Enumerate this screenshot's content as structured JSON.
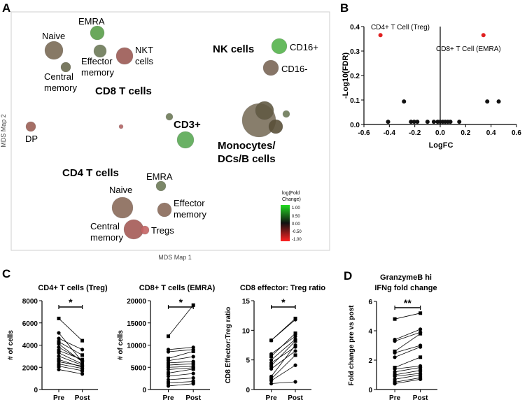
{
  "chart_data": [
    {
      "id": "A",
      "type": "scatter",
      "subtype": "bubble-mds",
      "panel_label": "A",
      "xlabel": "MDS Map 1",
      "ylabel": "MDS Map 2",
      "groups": [
        "CD8 T cells",
        "NK cells",
        "CD3+",
        "Monocytes/",
        "DCs/B cells",
        "CD4 T cells"
      ],
      "legend": {
        "title1": "log(Fold",
        "title2": "Change)",
        "ticks": [
          "1.00",
          "0.50",
          "0.00",
          "-0.50",
          "-1.00"
        ]
      },
      "bubbles": [
        {
          "label": "EMRA",
          "x": 139,
          "y": 47,
          "r": 10,
          "color": "#5a9e4a"
        },
        {
          "label": "Naive",
          "x": 77,
          "y": 72,
          "r": 13,
          "color": "#7a6a55"
        },
        {
          "label": "Effector memory",
          "x": 143,
          "y": 73,
          "r": 9,
          "color": "#6d7a58"
        },
        {
          "label": "NKT cells",
          "x": 178,
          "y": 80,
          "r": 12,
          "color": "#9b5a54"
        },
        {
          "label": "Central memory",
          "x": 94,
          "y": 96,
          "r": 7,
          "color": "#6a6a50"
        },
        {
          "label": "CD16+",
          "x": 399,
          "y": 66,
          "r": 11,
          "color": "#55b24d"
        },
        {
          "label": "CD16-",
          "x": 387,
          "y": 97,
          "r": 11,
          "color": "#7a6656"
        },
        {
          "label": "",
          "x": 242,
          "y": 167,
          "r": 5,
          "color": "#6d7a58"
        },
        {
          "label": "",
          "x": 173,
          "y": 181,
          "r": 3,
          "color": "#b26464"
        },
        {
          "label": "DP",
          "x": 44,
          "y": 181,
          "r": 7,
          "color": "#9b5f55"
        },
        {
          "label": "",
          "x": 265,
          "y": 200,
          "r": 12,
          "color": "#5aa954"
        },
        {
          "label": "",
          "x": 370,
          "y": 172,
          "r": 24,
          "color": "#7b705c"
        },
        {
          "label": "",
          "x": 378,
          "y": 158,
          "r": 13,
          "color": "#625a44"
        },
        {
          "label": "",
          "x": 394,
          "y": 181,
          "r": 10,
          "color": "#5a5038"
        },
        {
          "label": "",
          "x": 409,
          "y": 163,
          "r": 5,
          "color": "#6d7a58"
        },
        {
          "label": "EMRA",
          "x": 230,
          "y": 266,
          "r": 7,
          "color": "#6d7a58"
        },
        {
          "label": "Naive",
          "x": 175,
          "y": 297,
          "r": 15,
          "color": "#8a6a5a"
        },
        {
          "label": "Effector memory",
          "x": 235,
          "y": 300,
          "r": 10,
          "color": "#8a6a5a"
        },
        {
          "label": "Central memory",
          "x": 191,
          "y": 328,
          "r": 14,
          "color": "#a45a55"
        },
        {
          "label": "Tregs",
          "x": 207,
          "y": 329,
          "r": 6,
          "color": "#c46464"
        }
      ]
    },
    {
      "id": "B",
      "type": "scatter",
      "panel_label": "B",
      "xlabel": "LogFC",
      "ylabel": "-Log10(FDR)",
      "xlim": [
        -0.6,
        0.6
      ],
      "ylim": [
        0,
        0.4
      ],
      "xticks": [
        "-0.6",
        "-0.4",
        "-0.2",
        "0.0",
        "0.2",
        "0.4",
        "0.6"
      ],
      "yticks": [
        "0.0",
        "0.1",
        "0.2",
        "0.3",
        "0.4"
      ],
      "annotations": [
        "CD4+ T Cell (Treg)",
        "CD8+ T Cell (EMRA)"
      ],
      "points": [
        {
          "x": -0.47,
          "y": 0.365,
          "color": "#e02020"
        },
        {
          "x": 0.34,
          "y": 0.365,
          "color": "#e02020"
        },
        {
          "x": -0.285,
          "y": 0.094,
          "color": "#111"
        },
        {
          "x": 0.37,
          "y": 0.094,
          "color": "#111"
        },
        {
          "x": 0.46,
          "y": 0.094,
          "color": "#111"
        },
        {
          "x": -0.41,
          "y": 0.011,
          "color": "#111"
        },
        {
          "x": -0.23,
          "y": 0.011,
          "color": "#111"
        },
        {
          "x": -0.205,
          "y": 0.011,
          "color": "#111"
        },
        {
          "x": -0.18,
          "y": 0.011,
          "color": "#111"
        },
        {
          "x": -0.1,
          "y": 0.011,
          "color": "#111"
        },
        {
          "x": -0.05,
          "y": 0.011,
          "color": "#111"
        },
        {
          "x": -0.02,
          "y": 0.011,
          "color": "#111"
        },
        {
          "x": 0.0,
          "y": 0.011,
          "color": "#111"
        },
        {
          "x": 0.02,
          "y": 0.011,
          "color": "#111"
        },
        {
          "x": 0.04,
          "y": 0.011,
          "color": "#111"
        },
        {
          "x": 0.06,
          "y": 0.011,
          "color": "#111"
        },
        {
          "x": 0.08,
          "y": 0.011,
          "color": "#111"
        },
        {
          "x": 0.15,
          "y": 0.011,
          "color": "#111"
        }
      ]
    },
    {
      "id": "C1",
      "type": "line",
      "subtype": "paired-before-after",
      "panel_label": "C",
      "title": "CD4+ T cells (Treg)",
      "ylabel": "# of cells",
      "categories": [
        "Pre",
        "Post"
      ],
      "ylim": [
        0,
        8000
      ],
      "yticks": [
        "0",
        "2000",
        "4000",
        "6000",
        "8000"
      ],
      "significance": "*",
      "pairs": [
        [
          6400,
          4400
        ],
        [
          5100,
          2500
        ],
        [
          4600,
          3600
        ],
        [
          4300,
          3100
        ],
        [
          4100,
          2500
        ],
        [
          3800,
          2600
        ],
        [
          3500,
          2700
        ],
        [
          3300,
          2300
        ],
        [
          3000,
          2200
        ],
        [
          2700,
          2000
        ],
        [
          2500,
          2100
        ],
        [
          2300,
          1900
        ],
        [
          2100,
          1700
        ],
        [
          1800,
          1400
        ]
      ]
    },
    {
      "id": "C2",
      "type": "line",
      "subtype": "paired-before-after",
      "title": "CD8+ T cells (EMRA)",
      "ylabel": "# of cells",
      "categories": [
        "Pre",
        "Post"
      ],
      "ylim": [
        0,
        20000
      ],
      "yticks": [
        "0",
        "5000",
        "10000",
        "15000",
        "20000"
      ],
      "significance": "*",
      "pairs": [
        [
          12000,
          19000
        ],
        [
          9000,
          9500
        ],
        [
          8500,
          9000
        ],
        [
          7000,
          8600
        ],
        [
          6500,
          7400
        ],
        [
          6000,
          6300
        ],
        [
          5500,
          5800
        ],
        [
          5000,
          5200
        ],
        [
          4500,
          4900
        ],
        [
          3700,
          4600
        ],
        [
          3000,
          3600
        ],
        [
          2200,
          2600
        ],
        [
          1500,
          1800
        ],
        [
          800,
          1300
        ]
      ]
    },
    {
      "id": "C3",
      "type": "line",
      "subtype": "paired-before-after",
      "title": "CD8 effector: Treg ratio",
      "ylabel": "CD8 Effector:Treg ratio",
      "categories": [
        "Pre",
        "Post"
      ],
      "ylim": [
        0,
        15
      ],
      "yticks": [
        "0",
        "5",
        "10",
        "15"
      ],
      "significance": "*",
      "pairs": [
        [
          8.3,
          12.0
        ],
        [
          8.3,
          11.8
        ],
        [
          6.0,
          9.0
        ],
        [
          5.6,
          9.5
        ],
        [
          5.0,
          8.5
        ],
        [
          4.5,
          7.2
        ],
        [
          4.0,
          8.2
        ],
        [
          3.5,
          6.5
        ],
        [
          2.2,
          7.5
        ],
        [
          1.8,
          5.8
        ],
        [
          1.5,
          4.1
        ],
        [
          1.0,
          1.3
        ]
      ]
    },
    {
      "id": "D",
      "type": "line",
      "subtype": "paired-before-after",
      "panel_label": "D",
      "title": "GranzymeB hi",
      "title2": "IFNg fold change",
      "ylabel": "Fold change pre vs post",
      "categories": [
        "Pre",
        "Post"
      ],
      "ylim": [
        0,
        6
      ],
      "yticks": [
        "0",
        "2",
        "4",
        "6"
      ],
      "significance": "**",
      "pairs": [
        [
          4.8,
          5.2
        ],
        [
          3.4,
          4.1
        ],
        [
          3.3,
          3.9
        ],
        [
          2.6,
          3.8
        ],
        [
          2.5,
          3.0
        ],
        [
          2.2,
          2.9
        ],
        [
          1.5,
          2.2
        ],
        [
          1.4,
          1.6
        ],
        [
          1.2,
          1.5
        ],
        [
          1.0,
          1.3
        ],
        [
          0.9,
          1.1
        ],
        [
          0.7,
          1.0
        ],
        [
          0.5,
          0.8
        ],
        [
          0.4,
          0.7
        ]
      ]
    }
  ]
}
